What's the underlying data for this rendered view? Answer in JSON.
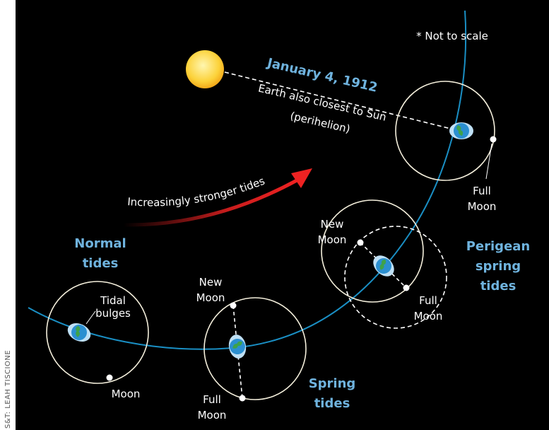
{
  "credit": "S&T: LEAH TISCIONE",
  "date": "January 4, 1912",
  "perihelion": [
    "Earth also closest to Sun",
    "(perihelion)"
  ],
  "note": "* Not to scale",
  "arrow_label": "Increasingly stronger tides",
  "normal_tides": [
    "Normal",
    "tides"
  ],
  "tidal_bulges": [
    "Tidal",
    "bulges"
  ],
  "moon": "Moon",
  "spring_new_moon": [
    "New",
    "Moon"
  ],
  "spring_full_moon": [
    "Full",
    "Moon"
  ],
  "spring_tides": [
    "Spring",
    "tides"
  ],
  "perigean_new_moon": [
    "New",
    "Moon"
  ],
  "perigean_full_moon": [
    "Full",
    "Moon"
  ],
  "perigean_tides": [
    "Perigean",
    "spring",
    "tides"
  ],
  "perihelion_full_moon": [
    "Full",
    "Moon"
  ]
}
